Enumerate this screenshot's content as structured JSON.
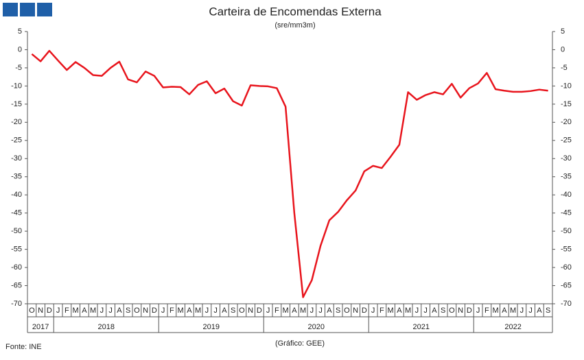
{
  "chart_data": {
    "type": "line",
    "title": "Carteira de Encomendas Externa",
    "subtitle": "(sre/mm3m)",
    "categories": [
      "O",
      "N",
      "D",
      "J",
      "F",
      "M",
      "A",
      "M",
      "J",
      "J",
      "A",
      "S",
      "O",
      "N",
      "D",
      "J",
      "F",
      "M",
      "A",
      "M",
      "J",
      "J",
      "A",
      "S",
      "O",
      "N",
      "D",
      "J",
      "F",
      "M",
      "A",
      "M",
      "J",
      "J",
      "A",
      "S",
      "O",
      "N",
      "D",
      "J",
      "F",
      "M",
      "A",
      "M",
      "J",
      "J",
      "A",
      "S",
      "O",
      "N",
      "D",
      "J",
      "F",
      "M",
      "A",
      "M",
      "J",
      "J",
      "A",
      "S"
    ],
    "years": [
      "2017",
      "2018",
      "2019",
      "2020",
      "2021",
      "2022"
    ],
    "series": [
      {
        "name": "Carteira de Encomendas Externa",
        "color": "#e8141c",
        "values": [
          -1.2,
          -3.2,
          -0.3,
          -3,
          -5.6,
          -3.4,
          -5,
          -7,
          -7.2,
          -5,
          -3.3,
          -8.2,
          -9,
          -6,
          -7.2,
          -10.4,
          -10.2,
          -10.3,
          -12.3,
          -9.7,
          -8.7,
          -12,
          -10.7,
          -14.2,
          -15.4,
          -9.8,
          -10,
          -10.1,
          -10.6,
          -15.7,
          -45,
          -68.2,
          -63.5,
          -54,
          -47,
          -44.7,
          -41.5,
          -38.8,
          -33.5,
          -32,
          -32.6,
          -29.5,
          -26.2,
          -11.7,
          -13.8,
          -12.5,
          -11.7,
          -12.3,
          -9.4,
          -13.2,
          -10.6,
          -9.3,
          -6.4,
          -10.9,
          -11.3,
          -11.6,
          -11.6,
          -11.4,
          -11,
          -11.3
        ]
      }
    ],
    "ylim": [
      -70,
      5
    ],
    "yticks": [
      5,
      0,
      -5,
      -10,
      -15,
      -20,
      -25,
      -30,
      -35,
      -40,
      -45,
      -50,
      -55,
      -60,
      -65,
      -70
    ],
    "y2lim": [
      -70,
      5
    ],
    "y2ticks": [
      5,
      0,
      -5,
      -10,
      -15,
      -20,
      -25,
      -30,
      -35,
      -40,
      -45,
      -50,
      -55,
      -60,
      -65,
      -70
    ],
    "source": "Fonte: INE",
    "credit": "(Gráfico: GEE)"
  }
}
